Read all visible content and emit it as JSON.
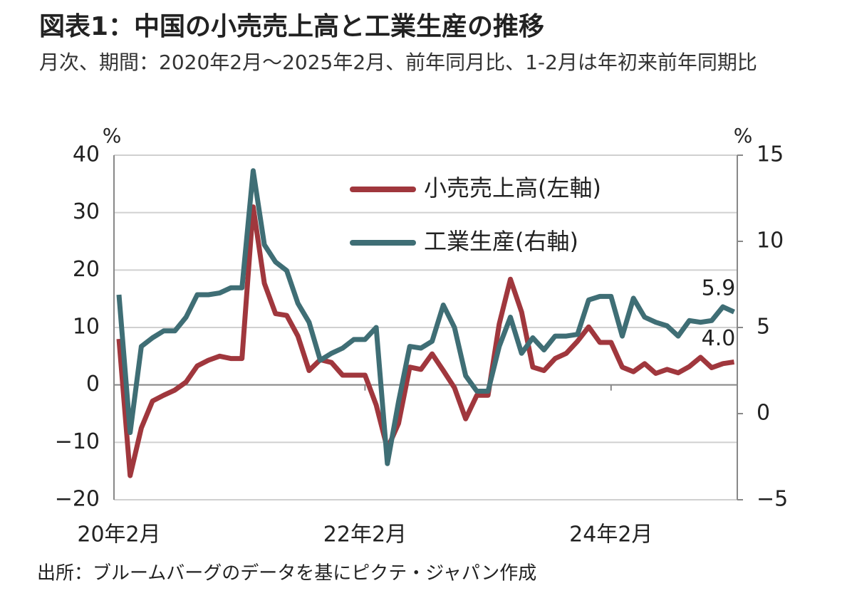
{
  "chart_data": {
    "type": "line",
    "title": "図表1：中国の小売売上高と工業生産の推移",
    "subtitle": "月次、期間：2020年2月～2025年2月、前年同月比、1-2月は年初来前年同期比",
    "source": "出所：ブルームバーグのデータを基にピクテ・ジャパン作成",
    "ylabel": "%",
    "y2label": "%",
    "categories": [
      "20年2月",
      null,
      null,
      null,
      null,
      null,
      null,
      null,
      null,
      null,
      null,
      null,
      null,
      null,
      null,
      null,
      null,
      null,
      null,
      null,
      null,
      null,
      "22年2月",
      null,
      null,
      null,
      null,
      null,
      null,
      null,
      null,
      null,
      null,
      null,
      null,
      null,
      null,
      null,
      null,
      null,
      null,
      null,
      null,
      null,
      "24年2月",
      null,
      null,
      null,
      null,
      null,
      null,
      null,
      null,
      null,
      null,
      null
    ],
    "series": [
      {
        "name": "小売売上高(左軸)",
        "color": "#a0373d",
        "axis": "y",
        "values": [
          8,
          -15.8,
          -7.5,
          -2.8,
          -1.8,
          -0.9,
          0.5,
          3.3,
          4.3,
          5.0,
          4.6,
          4.6,
          31,
          17.7,
          12.4,
          12.1,
          8.5,
          2.5,
          4.4,
          3.9,
          1.7,
          1.7,
          1.7,
          -3.5,
          -11.1,
          -6.7,
          3.1,
          2.7,
          5.4,
          2.5,
          -0.5,
          -5.9,
          -1.8,
          -1.8,
          10.6,
          18.4,
          12.7,
          3.1,
          2.5,
          4.6,
          5.5,
          7.6,
          10.1,
          7.4,
          7.4,
          3.1,
          2.3,
          3.7,
          2.0,
          2.7,
          2.1,
          3.2,
          4.8,
          3.0,
          3.7,
          4.0
        ],
        "value_labels": [
          null,
          null,
          null,
          null,
          null,
          null,
          null,
          null,
          null,
          null,
          null,
          null,
          null,
          null,
          null,
          null,
          null,
          null,
          null,
          null,
          null,
          null,
          null,
          null,
          null,
          null,
          null,
          null,
          null,
          null,
          null,
          null,
          null,
          null,
          null,
          null,
          null,
          null,
          null,
          null,
          null,
          null,
          null,
          null,
          null,
          null,
          null,
          null,
          null,
          null,
          null,
          null,
          null,
          null,
          null,
          "4.0"
        ]
      },
      {
        "name": "工業生産(右軸)",
        "color": "#3f6e75",
        "axis": "y2",
        "values": [
          6.9,
          -1.1,
          3.9,
          4.4,
          4.8,
          4.8,
          5.6,
          6.9,
          6.9,
          7.0,
          7.3,
          7.3,
          14.1,
          9.8,
          8.8,
          8.3,
          6.4,
          5.3,
          3.1,
          3.5,
          3.8,
          4.3,
          4.3,
          5.0,
          -2.9,
          0.7,
          3.9,
          3.8,
          4.2,
          6.3,
          5.0,
          2.2,
          1.3,
          1.3,
          3.9,
          5.6,
          3.5,
          4.4,
          3.7,
          4.5,
          4.5,
          4.6,
          6.6,
          6.8,
          6.8,
          4.5,
          6.7,
          5.6,
          5.3,
          5.1,
          4.5,
          5.4,
          5.3,
          5.4,
          6.2,
          5.9
        ]
      }
    ],
    "ylim": [
      -20,
      40
    ],
    "yticks": [
      {
        "value": -20,
        "label": "−20"
      },
      {
        "value": -10,
        "label": "−10"
      },
      0,
      10,
      20,
      30,
      40
    ],
    "y2lim": [
      -5,
      15
    ],
    "y2ticks": [
      {
        "value": -5,
        "label": "−5"
      },
      0,
      5,
      10,
      15
    ],
    "grid": true,
    "legend": "upper right"
  }
}
